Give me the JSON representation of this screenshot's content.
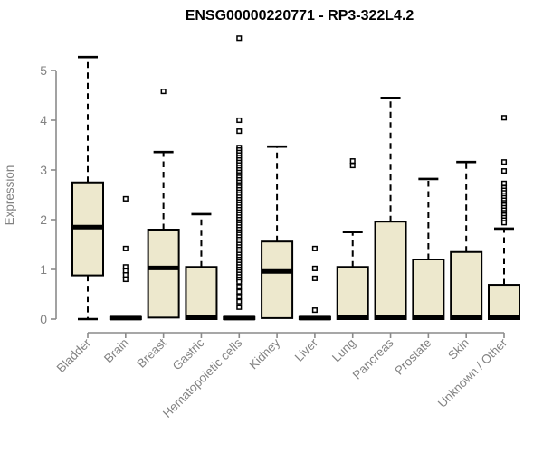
{
  "chart_data": {
    "type": "boxplot",
    "title": "ENSG00000220771 - RP3-322L4.2",
    "ylabel": "Expression",
    "xlabel": "",
    "ylim": [
      0,
      5.7
    ],
    "yticks": [
      0,
      1,
      2,
      3,
      4,
      5
    ],
    "grid": false,
    "legend": null,
    "categories": [
      "Bladder",
      "Brain",
      "Breast",
      "Gastric",
      "Hematopoietic cells",
      "Kidney",
      "Liver",
      "Lung",
      "Pancreas",
      "Prostate",
      "Skin",
      "Unknown / Other"
    ],
    "series": [
      {
        "category": "Bladder",
        "whisker_low": 0.0,
        "q1": 0.88,
        "median": 1.85,
        "q3": 2.75,
        "whisker_high": 5.27,
        "outliers": []
      },
      {
        "category": "Brain",
        "whisker_low": 0.0,
        "q1": 0.0,
        "median": 0.02,
        "q3": 0.04,
        "whisker_high": 0.04,
        "outliers": [
          2.42,
          1.42,
          1.05,
          0.97,
          0.89,
          0.8
        ]
      },
      {
        "category": "Breast",
        "whisker_low": 0.0,
        "q1": 0.03,
        "median": 1.03,
        "q3": 1.8,
        "whisker_high": 3.36,
        "outliers": [
          4.58
        ]
      },
      {
        "category": "Gastric",
        "whisker_low": 0.0,
        "q1": 0.0,
        "median": 0.03,
        "q3": 1.05,
        "whisker_high": 2.11,
        "outliers": []
      },
      {
        "category": "Hematopoietic cells",
        "whisker_low": 0.0,
        "q1": 0.0,
        "median": 0.02,
        "q3": 0.04,
        "whisker_high": 0.04,
        "outliers": [
          5.65,
          4.0,
          3.78,
          3.45,
          3.4,
          3.35,
          3.3,
          3.25,
          3.2,
          3.15,
          3.1,
          3.05,
          3.0,
          2.95,
          2.9,
          2.85,
          2.8,
          2.75,
          2.7,
          2.65,
          2.6,
          2.55,
          2.5,
          2.45,
          2.4,
          2.35,
          2.3,
          2.25,
          2.2,
          2.15,
          2.1,
          2.05,
          2.0,
          1.95,
          1.9,
          1.85,
          1.8,
          1.75,
          1.7,
          1.65,
          1.6,
          1.55,
          1.5,
          1.45,
          1.4,
          1.35,
          1.3,
          1.25,
          1.2,
          1.15,
          1.1,
          1.05,
          1.0,
          0.95,
          0.9,
          0.85,
          0.8,
          0.75,
          0.65,
          0.55,
          0.45,
          0.35,
          0.24
        ]
      },
      {
        "category": "Kidney",
        "whisker_low": 0.0,
        "q1": 0.02,
        "median": 0.96,
        "q3": 1.56,
        "whisker_high": 3.47,
        "outliers": []
      },
      {
        "category": "Liver",
        "whisker_low": 0.0,
        "q1": 0.0,
        "median": 0.02,
        "q3": 0.04,
        "whisker_high": 0.04,
        "outliers": [
          1.42,
          1.02,
          0.82,
          0.18
        ]
      },
      {
        "category": "Lung",
        "whisker_low": 0.0,
        "q1": 0.0,
        "median": 0.03,
        "q3": 1.05,
        "whisker_high": 1.75,
        "outliers": [
          3.18,
          3.09
        ]
      },
      {
        "category": "Pancreas",
        "whisker_low": 0.0,
        "q1": 0.0,
        "median": 0.03,
        "q3": 1.96,
        "whisker_high": 4.45,
        "outliers": []
      },
      {
        "category": "Prostate",
        "whisker_low": 0.0,
        "q1": 0.0,
        "median": 0.03,
        "q3": 1.2,
        "whisker_high": 2.82,
        "outliers": []
      },
      {
        "category": "Skin",
        "whisker_low": 0.0,
        "q1": 0.0,
        "median": 0.03,
        "q3": 1.35,
        "whisker_high": 3.16,
        "outliers": []
      },
      {
        "category": "Unknown / Other",
        "whisker_low": 0.0,
        "q1": 0.0,
        "median": 0.03,
        "q3": 0.69,
        "whisker_high": 1.82,
        "outliers": [
          4.05,
          3.16,
          2.98,
          2.73,
          2.64,
          2.59,
          2.54,
          2.49,
          2.44,
          2.39,
          2.34,
          2.29,
          2.24,
          2.19,
          2.14,
          2.09,
          2.04,
          1.99,
          1.94
        ]
      }
    ],
    "colors": {
      "box_fill": "#EDE8CD",
      "box_border": "#000000",
      "median": "#000000",
      "whisker": "#000000",
      "outlier_stroke": "#000000",
      "outlier_fill": "#FFFFFF",
      "axis": "#8A8A8A",
      "tick_text": "#828282",
      "title_text": "#000000",
      "background": "#FFFFFF"
    },
    "legend_position": "none"
  }
}
